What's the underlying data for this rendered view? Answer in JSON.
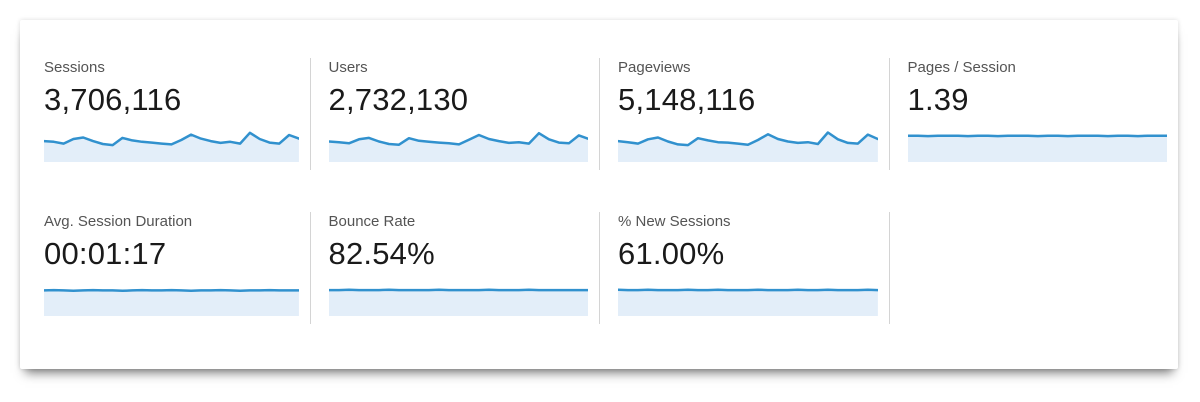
{
  "colors": {
    "spark_line": "#3191ce",
    "spark_fill": "#e3eef9",
    "divider": "#d4d4d4",
    "label_text": "#545454",
    "value_text": "#1a1a1a",
    "card_bg": "#ffffff"
  },
  "metrics": [
    {
      "label": "Sessions",
      "value": "3,706,116",
      "sparkline": [
        0.58,
        0.56,
        0.51,
        0.64,
        0.68,
        0.58,
        0.5,
        0.47,
        0.67,
        0.6,
        0.56,
        0.54,
        0.51,
        0.49,
        0.61,
        0.76,
        0.65,
        0.58,
        0.53,
        0.56,
        0.51,
        0.81,
        0.64,
        0.54,
        0.51,
        0.75,
        0.65
      ]
    },
    {
      "label": "Users",
      "value": "2,732,130",
      "sparkline": [
        0.57,
        0.55,
        0.52,
        0.63,
        0.67,
        0.57,
        0.5,
        0.48,
        0.66,
        0.59,
        0.56,
        0.54,
        0.52,
        0.49,
        0.62,
        0.75,
        0.64,
        0.58,
        0.53,
        0.55,
        0.51,
        0.8,
        0.63,
        0.54,
        0.52,
        0.74,
        0.64
      ]
    },
    {
      "label": "Pageviews",
      "value": "5,148,116",
      "sparkline": [
        0.58,
        0.55,
        0.51,
        0.63,
        0.68,
        0.57,
        0.49,
        0.47,
        0.66,
        0.6,
        0.55,
        0.54,
        0.51,
        0.48,
        0.61,
        0.77,
        0.64,
        0.57,
        0.53,
        0.55,
        0.5,
        0.82,
        0.63,
        0.53,
        0.51,
        0.76,
        0.64
      ]
    },
    {
      "label": "Pages / Session",
      "value": "1.39",
      "sparkline": [
        0.73,
        0.73,
        0.72,
        0.73,
        0.73,
        0.73,
        0.72,
        0.73,
        0.73,
        0.72,
        0.73,
        0.73,
        0.73,
        0.72,
        0.73,
        0.73,
        0.72,
        0.73,
        0.73,
        0.73,
        0.72,
        0.73,
        0.73,
        0.72,
        0.73,
        0.73,
        0.73
      ]
    },
    {
      "label": "Avg. Session Duration",
      "value": "00:01:17",
      "sparkline": [
        0.71,
        0.72,
        0.71,
        0.7,
        0.71,
        0.72,
        0.71,
        0.71,
        0.7,
        0.71,
        0.72,
        0.71,
        0.71,
        0.72,
        0.71,
        0.7,
        0.71,
        0.71,
        0.72,
        0.71,
        0.7,
        0.71,
        0.71,
        0.72,
        0.71,
        0.71,
        0.71
      ]
    },
    {
      "label": "Bounce Rate",
      "value": "82.54%",
      "sparkline": [
        0.72,
        0.72,
        0.73,
        0.72,
        0.72,
        0.72,
        0.73,
        0.72,
        0.72,
        0.72,
        0.72,
        0.73,
        0.72,
        0.72,
        0.72,
        0.72,
        0.73,
        0.72,
        0.72,
        0.72,
        0.73,
        0.72,
        0.72,
        0.72,
        0.72,
        0.72,
        0.72
      ]
    },
    {
      "label": "% New Sessions",
      "value": "61.00%",
      "sparkline": [
        0.73,
        0.72,
        0.72,
        0.73,
        0.72,
        0.72,
        0.72,
        0.73,
        0.72,
        0.72,
        0.73,
        0.72,
        0.72,
        0.72,
        0.73,
        0.72,
        0.72,
        0.72,
        0.73,
        0.72,
        0.72,
        0.73,
        0.72,
        0.72,
        0.72,
        0.73,
        0.72
      ]
    }
  ],
  "chart_data": [
    {
      "type": "area",
      "title": "Sessions trend sparkline",
      "x": "time (unlabeled)",
      "values_relative": [
        0.58,
        0.56,
        0.51,
        0.64,
        0.68,
        0.58,
        0.5,
        0.47,
        0.67,
        0.6,
        0.56,
        0.54,
        0.51,
        0.49,
        0.61,
        0.76,
        0.65,
        0.58,
        0.53,
        0.56,
        0.51,
        0.81,
        0.64,
        0.54,
        0.51,
        0.75,
        0.65
      ],
      "axes": "none",
      "legend": "none"
    },
    {
      "type": "area",
      "title": "Users trend sparkline",
      "x": "time (unlabeled)",
      "values_relative": [
        0.57,
        0.55,
        0.52,
        0.63,
        0.67,
        0.57,
        0.5,
        0.48,
        0.66,
        0.59,
        0.56,
        0.54,
        0.52,
        0.49,
        0.62,
        0.75,
        0.64,
        0.58,
        0.53,
        0.55,
        0.51,
        0.8,
        0.63,
        0.54,
        0.52,
        0.74,
        0.64
      ],
      "axes": "none",
      "legend": "none"
    },
    {
      "type": "area",
      "title": "Pageviews trend sparkline",
      "x": "time (unlabeled)",
      "values_relative": [
        0.58,
        0.55,
        0.51,
        0.63,
        0.68,
        0.57,
        0.49,
        0.47,
        0.66,
        0.6,
        0.55,
        0.54,
        0.51,
        0.48,
        0.61,
        0.77,
        0.64,
        0.57,
        0.53,
        0.55,
        0.5,
        0.82,
        0.63,
        0.53,
        0.51,
        0.76,
        0.64
      ],
      "axes": "none",
      "legend": "none"
    },
    {
      "type": "area",
      "title": "Pages / Session trend sparkline (flat)",
      "x": "time (unlabeled)",
      "values_relative": [
        0.73,
        0.73,
        0.72,
        0.73,
        0.73,
        0.73,
        0.72,
        0.73,
        0.73,
        0.72,
        0.73,
        0.73,
        0.73,
        0.72,
        0.73,
        0.73,
        0.72,
        0.73,
        0.73,
        0.73,
        0.72,
        0.73,
        0.73,
        0.72,
        0.73,
        0.73,
        0.73
      ],
      "axes": "none",
      "legend": "none"
    },
    {
      "type": "area",
      "title": "Avg. Session Duration trend sparkline (flat)",
      "x": "time (unlabeled)",
      "values_relative": [
        0.71,
        0.72,
        0.71,
        0.7,
        0.71,
        0.72,
        0.71,
        0.71,
        0.7,
        0.71,
        0.72,
        0.71,
        0.71,
        0.72,
        0.71,
        0.7,
        0.71,
        0.71,
        0.72,
        0.71,
        0.7,
        0.71,
        0.71,
        0.72,
        0.71,
        0.71,
        0.71
      ],
      "axes": "none",
      "legend": "none"
    },
    {
      "type": "area",
      "title": "Bounce Rate trend sparkline (flat)",
      "x": "time (unlabeled)",
      "values_relative": [
        0.72,
        0.72,
        0.73,
        0.72,
        0.72,
        0.72,
        0.73,
        0.72,
        0.72,
        0.72,
        0.72,
        0.73,
        0.72,
        0.72,
        0.72,
        0.72,
        0.73,
        0.72,
        0.72,
        0.72,
        0.73,
        0.72,
        0.72,
        0.72,
        0.72,
        0.72,
        0.72
      ],
      "axes": "none",
      "legend": "none"
    },
    {
      "type": "area",
      "title": "% New Sessions trend sparkline (flat)",
      "x": "time (unlabeled)",
      "values_relative": [
        0.73,
        0.72,
        0.72,
        0.73,
        0.72,
        0.72,
        0.72,
        0.73,
        0.72,
        0.72,
        0.73,
        0.72,
        0.72,
        0.72,
        0.73,
        0.72,
        0.72,
        0.72,
        0.73,
        0.72,
        0.72,
        0.73,
        0.72,
        0.72,
        0.72,
        0.73,
        0.72
      ],
      "axes": "none",
      "legend": "none"
    }
  ]
}
